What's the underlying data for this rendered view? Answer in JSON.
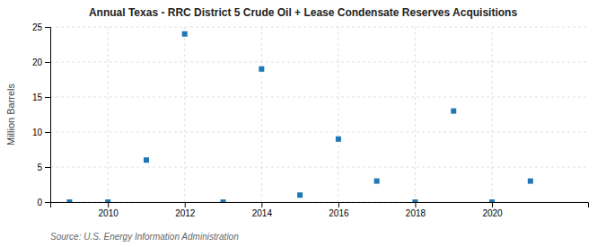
{
  "chart_data": {
    "type": "scatter",
    "title": "Annual Texas - RRC District 5 Crude Oil + Lease Condensate Reserves Acquisitions",
    "ylabel": "Million Barrels",
    "source": "Source: U.S. Energy Information Administration",
    "x": [
      2009,
      2010,
      2011,
      2012,
      2013,
      2014,
      2015,
      2016,
      2017,
      2018,
      2019,
      2020,
      2021
    ],
    "values": [
      0.0,
      0.0,
      6.0,
      24.0,
      0.0,
      19.0,
      1.0,
      9.0,
      3.0,
      0.0,
      13.0,
      0.0,
      3.0
    ],
    "marker": "square",
    "xlim": [
      2008.5,
      2022.5
    ],
    "xticks": [
      2010,
      2012,
      2014,
      2016,
      2018,
      2020
    ],
    "ylim": [
      0,
      25
    ],
    "yticks": [
      0,
      5,
      10,
      15,
      20,
      25
    ],
    "grid": true
  }
}
